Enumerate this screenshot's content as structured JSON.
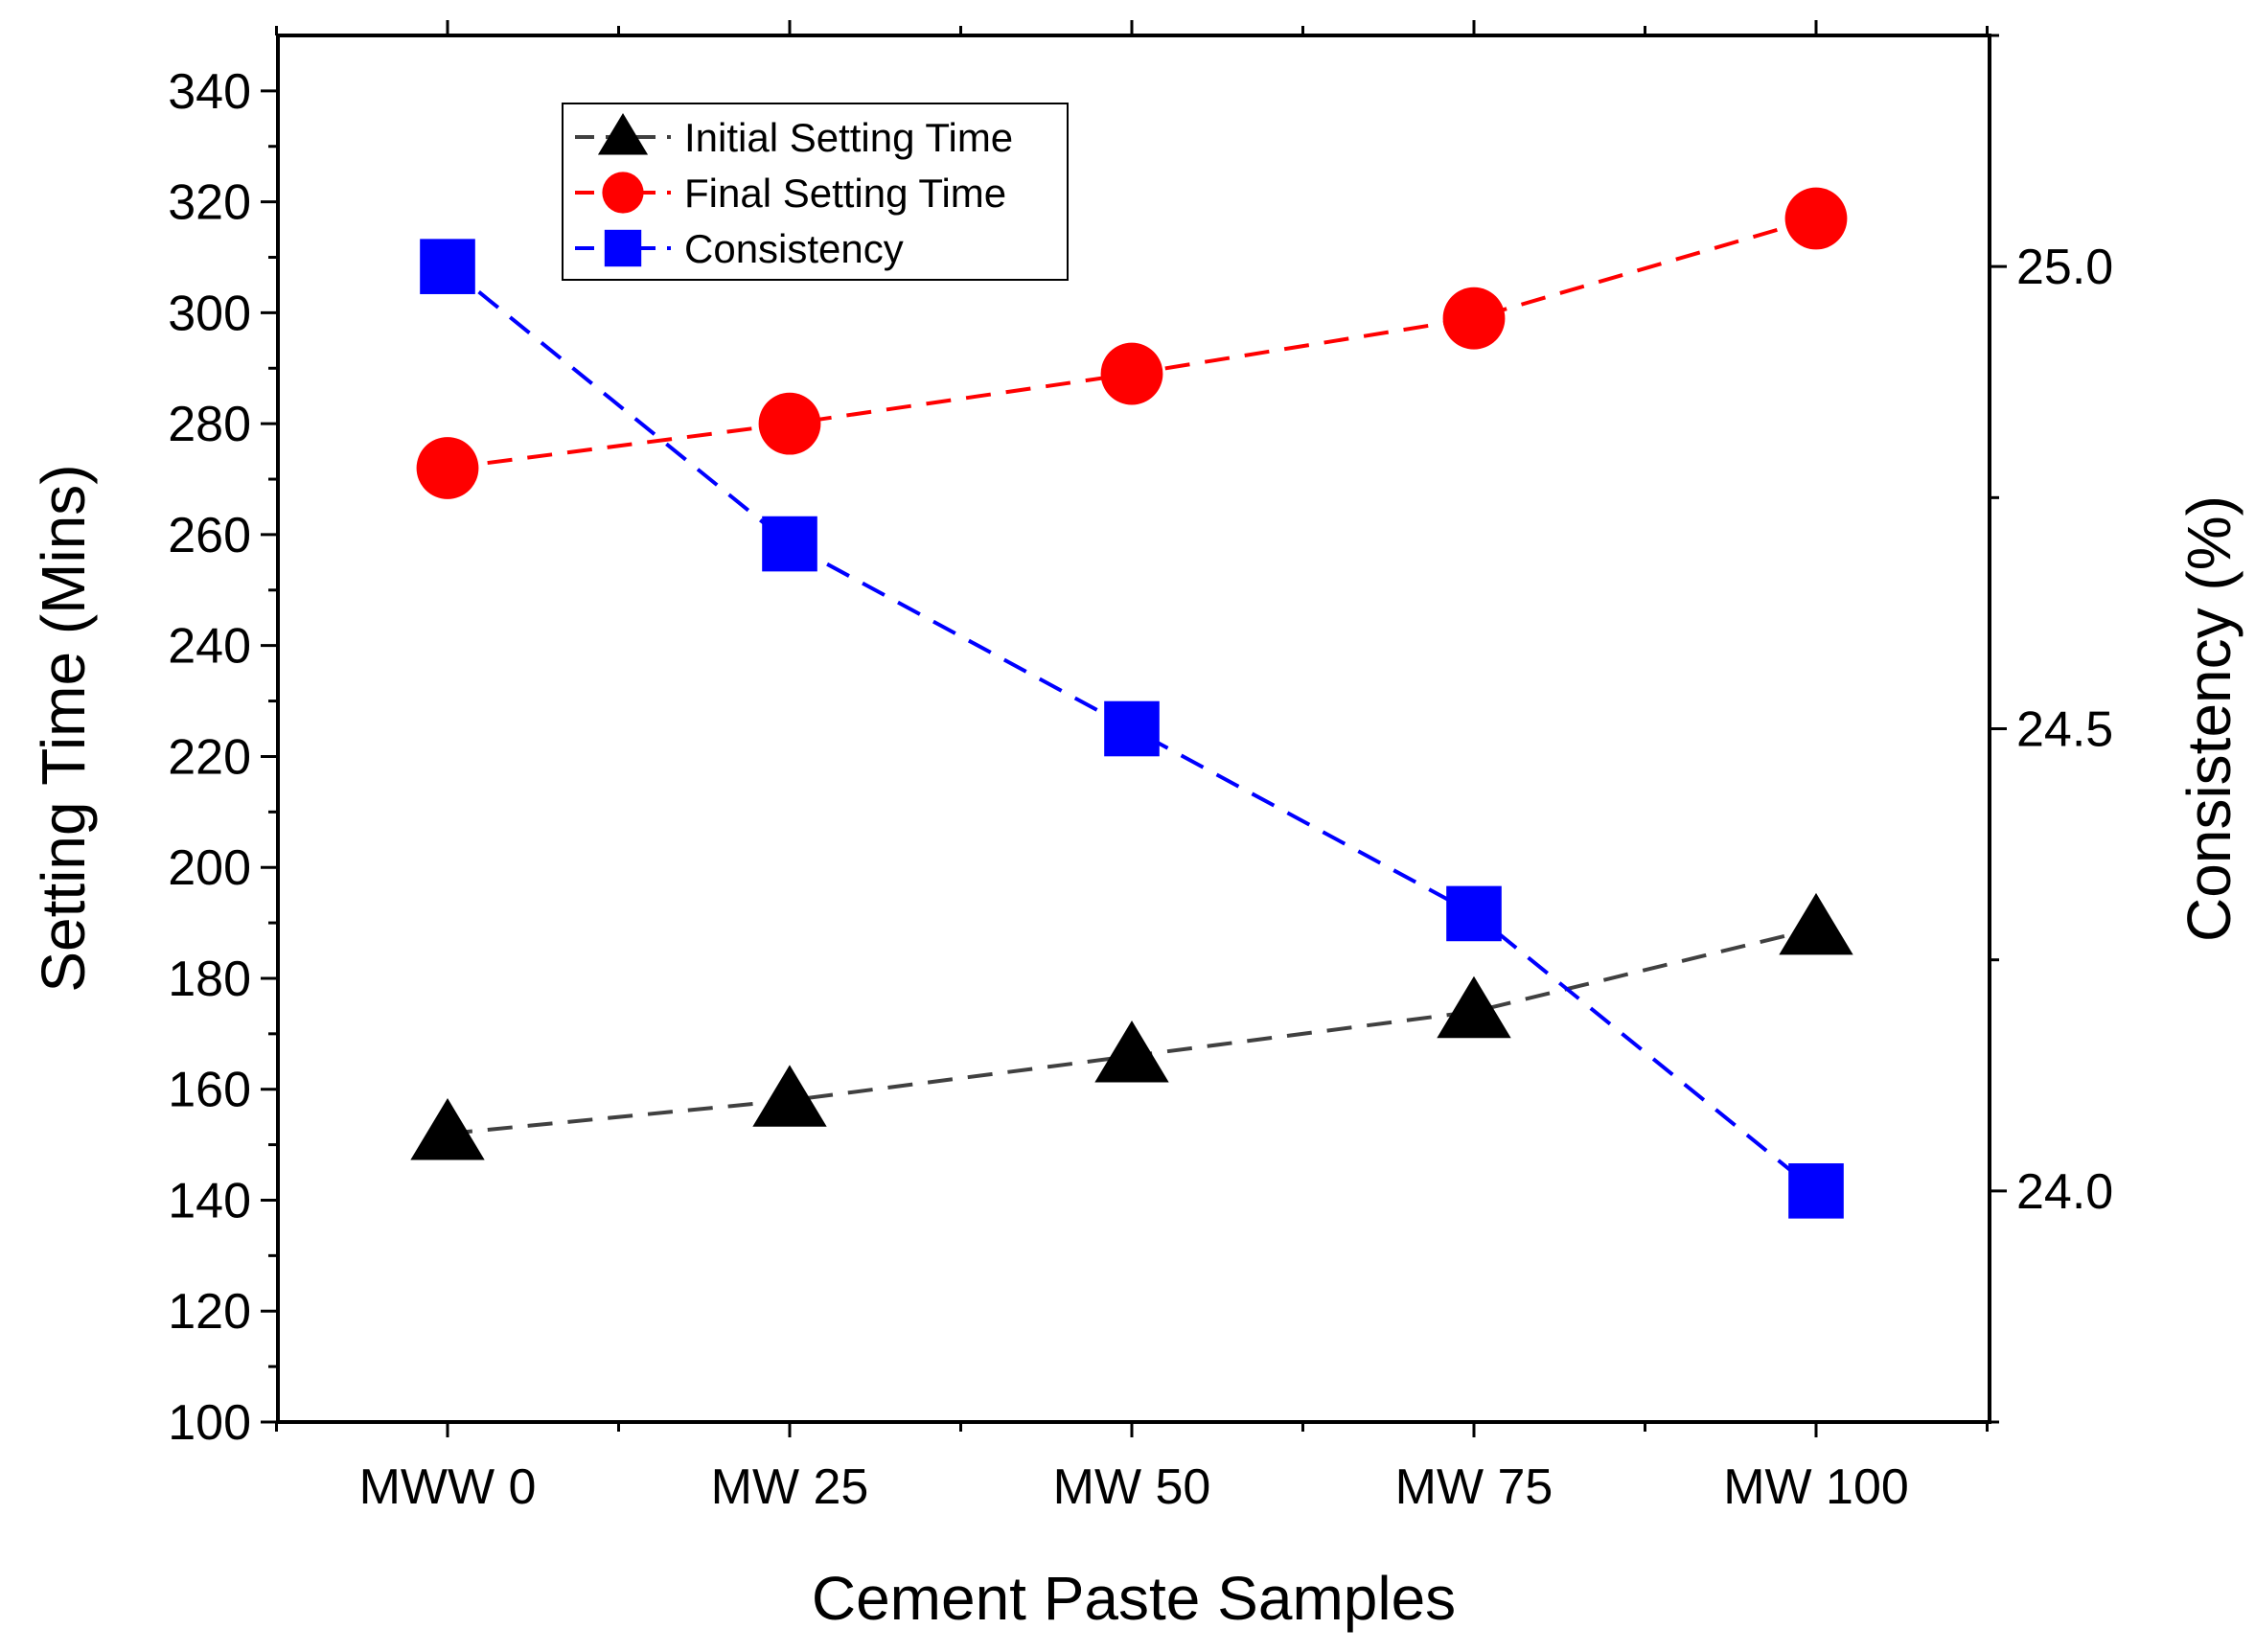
{
  "chart_data": {
    "type": "line",
    "categories": [
      "MWW 0",
      "MW 25",
      "MW 50",
      "MW 75",
      "MW 100"
    ],
    "xlabel": "Cement Paste Samples",
    "ylabel": "Setting Time (Mins)",
    "y2label": "Consistency (%)",
    "ylim": [
      100,
      350
    ],
    "y_ticks": [
      100,
      120,
      140,
      160,
      180,
      200,
      220,
      240,
      260,
      280,
      300,
      320,
      340
    ],
    "y2lim": [
      23.75,
      25.25
    ],
    "y2_ticks": [
      "24.0",
      "24.5",
      "25.0"
    ],
    "grid": false,
    "legend_position": "top-left",
    "series": [
      {
        "name": "Initial Setting Time",
        "axis": "left",
        "marker": "triangle",
        "color": "#000000",
        "line_color": "#404040",
        "values": [
          152,
          158,
          166,
          174,
          189
        ]
      },
      {
        "name": "Final Setting Time",
        "axis": "left",
        "marker": "circle",
        "color": "#ff0000",
        "line_color": "#ff0000",
        "values": [
          272,
          280,
          289,
          299,
          317
        ]
      },
      {
        "name": "Consistency",
        "axis": "right",
        "marker": "square",
        "color": "#0000ff",
        "line_color": "#0000ff",
        "values": [
          25.0,
          24.7,
          24.5,
          24.3,
          24.0
        ]
      }
    ]
  }
}
